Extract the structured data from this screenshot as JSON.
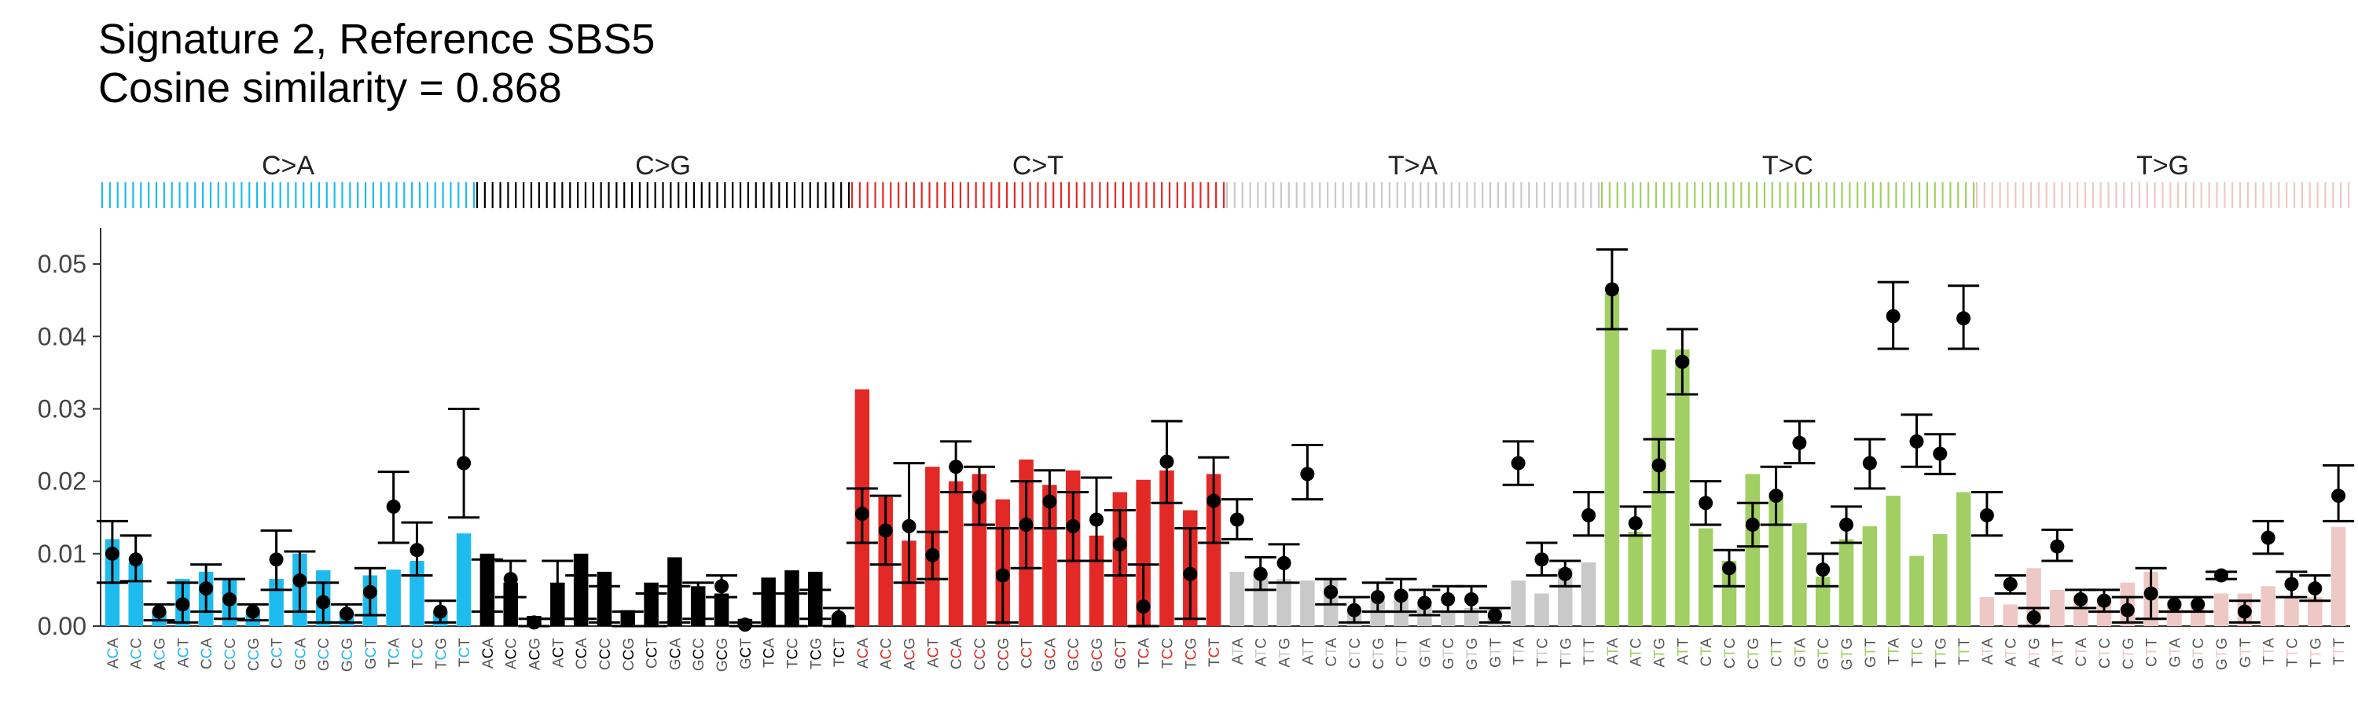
{
  "title_line1": "Signature 2, Reference SBS5",
  "title_line2": "Cosine similarity = 0.868",
  "chart_data": {
    "type": "bar",
    "ylim": [
      0,
      0.055
    ],
    "yticks": [
      0.0,
      0.01,
      0.02,
      0.03,
      0.04,
      0.05
    ],
    "ytick_labels": [
      "0.00",
      "0.01",
      "0.02",
      "0.03",
      "0.04",
      "0.05"
    ],
    "grid": false,
    "legend": "none",
    "groups": [
      {
        "label": "C>A",
        "color": "#1ebbee",
        "mutated_base": "C"
      },
      {
        "label": "C>G",
        "color": "#000000",
        "mutated_base": "C"
      },
      {
        "label": "C>T",
        "color": "#e22926",
        "mutated_base": "C"
      },
      {
        "label": "T>A",
        "color": "#c9c9c9",
        "mutated_base": "T"
      },
      {
        "label": "T>C",
        "color": "#a1cf64",
        "mutated_base": "T"
      },
      {
        "label": "T>G",
        "color": "#edc8c5",
        "mutated_base": "T"
      }
    ],
    "contexts_C": [
      "ACA",
      "ACC",
      "ACG",
      "ACT",
      "CCA",
      "CCC",
      "CCG",
      "CCT",
      "GCA",
      "GCC",
      "GCG",
      "GCT",
      "TCA",
      "TCC",
      "TCG",
      "TCT"
    ],
    "contexts_T": [
      "ATA",
      "ATC",
      "ATG",
      "ATT",
      "CTA",
      "CTC",
      "CTG",
      "CTT",
      "GTA",
      "GTC",
      "GTG",
      "GTT",
      "TTA",
      "TTC",
      "TTG",
      "TTT"
    ],
    "series": [
      {
        "name": "Reference SBS5",
        "mark": "bar",
        "values": [
          0.012,
          0.0087,
          0.002,
          0.0065,
          0.0075,
          0.0065,
          0.0018,
          0.0065,
          0.01,
          0.0077,
          0.002,
          0.007,
          0.0078,
          0.009,
          0.002,
          0.0128,
          0.01,
          0.006,
          0.0014,
          0.006,
          0.01,
          0.0075,
          0.0022,
          0.006,
          0.0095,
          0.0055,
          0.0045,
          0.001,
          0.0067,
          0.0077,
          0.0075,
          0.0015,
          0.0327,
          0.0178,
          0.0118,
          0.022,
          0.02,
          0.021,
          0.0175,
          0.023,
          0.0195,
          0.0215,
          0.0125,
          0.0185,
          0.0202,
          0.0215,
          0.016,
          0.021,
          0.0075,
          0.0072,
          0.0065,
          0.0063,
          0.0065,
          0.002,
          0.0035,
          0.004,
          0.0035,
          0.002,
          0.0025,
          0.0025,
          0.0063,
          0.0045,
          0.008,
          0.0088,
          0.046,
          0.013,
          0.0382,
          0.0382,
          0.0135,
          0.009,
          0.021,
          0.0185,
          0.0142,
          0.0068,
          0.012,
          0.0138,
          0.018,
          0.0097,
          0.0127,
          0.0185,
          0.004,
          0.003,
          0.008,
          0.005,
          0.0035,
          0.004,
          0.006,
          0.0075,
          0.0035,
          0.0025,
          0.0045,
          0.0045,
          0.0055,
          0.004,
          0.004,
          0.0137
        ]
      },
      {
        "name": "Signature 2",
        "mark": "point",
        "values": [
          0.01,
          0.0092,
          0.002,
          0.003,
          0.0052,
          0.0037,
          0.002,
          0.0092,
          0.0063,
          0.0033,
          0.0017,
          0.0047,
          0.0165,
          0.0105,
          0.002,
          0.0225,
          0.0055,
          0.0065,
          0.0005,
          0.005,
          0.004,
          0.003,
          0.001,
          0.002,
          0.003,
          0.0035,
          0.0055,
          0.0002,
          0.002,
          0.0022,
          0.003,
          0.0012,
          0.0155,
          0.0132,
          0.0138,
          0.0098,
          0.022,
          0.0178,
          0.007,
          0.014,
          0.0172,
          0.0138,
          0.0147,
          0.0113,
          0.0027,
          0.0227,
          0.0072,
          0.0173,
          0.0147,
          0.0072,
          0.0087,
          0.021,
          0.0047,
          0.0022,
          0.004,
          0.0042,
          0.0032,
          0.0037,
          0.0037,
          0.0015,
          0.0225,
          0.0092,
          0.0072,
          0.0153,
          0.0465,
          0.0142,
          0.0222,
          0.0365,
          0.017,
          0.008,
          0.014,
          0.018,
          0.0253,
          0.0078,
          0.014,
          0.0225,
          0.0428,
          0.0255,
          0.0238,
          0.0425,
          0.0153,
          0.0058,
          0.0012,
          0.011,
          0.0037,
          0.0035,
          0.0022,
          0.0045,
          0.003,
          0.003,
          0.007,
          0.002,
          0.0122,
          0.0058,
          0.0052,
          0.018
        ],
        "lower": [
          0.006,
          0.0062,
          0.0008,
          0.0005,
          0.002,
          0.001,
          0.0008,
          0.005,
          0.002,
          0.0005,
          0.0005,
          0.0015,
          0.0115,
          0.007,
          0.0005,
          0.015,
          0.002,
          0.004,
          0.0,
          0.001,
          0.001,
          0.0005,
          0.0,
          0.0,
          0.0005,
          0.001,
          0.004,
          0.0,
          0.0,
          0.0,
          0.001,
          0.0,
          0.0115,
          0.0085,
          0.006,
          0.0065,
          0.0185,
          0.014,
          0.0005,
          0.008,
          0.0135,
          0.009,
          0.009,
          0.007,
          0.0,
          0.017,
          0.001,
          0.0115,
          0.012,
          0.005,
          0.006,
          0.0175,
          0.003,
          0.0005,
          0.002,
          0.002,
          0.0015,
          0.002,
          0.002,
          0.0005,
          0.0195,
          0.007,
          0.0055,
          0.0125,
          0.041,
          0.0125,
          0.0185,
          0.032,
          0.014,
          0.0055,
          0.011,
          0.014,
          0.0225,
          0.0055,
          0.0115,
          0.019,
          0.0383,
          0.022,
          0.021,
          0.0383,
          0.0125,
          0.0045,
          0.0,
          0.009,
          0.0025,
          0.002,
          0.0005,
          0.001,
          0.002,
          0.002,
          0.0065,
          0.0005,
          0.01,
          0.004,
          0.0035,
          0.0145
        ],
        "upper": [
          0.0145,
          0.0125,
          0.003,
          0.006,
          0.0085,
          0.0065,
          0.003,
          0.0132,
          0.0103,
          0.006,
          0.003,
          0.008,
          0.0213,
          0.0143,
          0.0035,
          0.03,
          0.0092,
          0.009,
          0.001,
          0.009,
          0.007,
          0.0055,
          0.002,
          0.0045,
          0.0055,
          0.006,
          0.007,
          0.0005,
          0.0045,
          0.0045,
          0.005,
          0.0025,
          0.019,
          0.018,
          0.0225,
          0.013,
          0.0255,
          0.022,
          0.0135,
          0.02,
          0.0215,
          0.0185,
          0.0205,
          0.016,
          0.0085,
          0.0283,
          0.0135,
          0.0233,
          0.0175,
          0.0095,
          0.0113,
          0.025,
          0.0065,
          0.004,
          0.006,
          0.0065,
          0.005,
          0.0055,
          0.0055,
          0.0025,
          0.0255,
          0.0115,
          0.009,
          0.0185,
          0.052,
          0.0165,
          0.0258,
          0.041,
          0.02,
          0.0105,
          0.017,
          0.022,
          0.0283,
          0.01,
          0.0165,
          0.0258,
          0.0475,
          0.0292,
          0.0265,
          0.047,
          0.0185,
          0.007,
          0.0025,
          0.0133,
          0.005,
          0.005,
          0.004,
          0.008,
          0.004,
          0.004,
          0.0075,
          0.0035,
          0.0145,
          0.0075,
          0.007,
          0.0222
        ]
      }
    ]
  }
}
